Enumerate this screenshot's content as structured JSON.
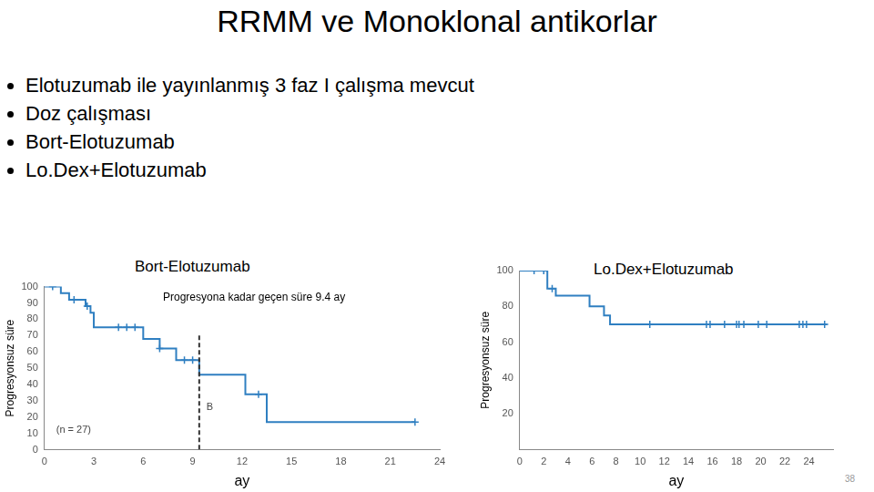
{
  "title": "RRMM ve Monoklonal antikorlar",
  "bullets": [
    "Elotuzumab ile yayınlanmış 3 faz I çalışma mevcut",
    "Doz çalışması",
    "Bort-Elotuzumab",
    "Lo.Dex+Elotuzumab"
  ],
  "page_number": 38,
  "chart_data": [
    {
      "type": "line",
      "title": "Bort-Elotuzumab",
      "x_label": "ay",
      "y_label": "Progresyonsuz süre",
      "xlim": [
        0,
        24
      ],
      "xticks": [
        0,
        3,
        6,
        9,
        12,
        15,
        18,
        21,
        24
      ],
      "ylim": [
        0,
        100
      ],
      "yticks": [
        0,
        10,
        20,
        30,
        40,
        50,
        60,
        70,
        80,
        90,
        100
      ],
      "grid": false,
      "median": 9.4,
      "annotations": [
        "Progresyona kadar geçen süre 9.4 ay",
        "(n = 27)",
        "B"
      ],
      "series": [
        {
          "color": "#2f7fc1",
          "line_style": "stepped",
          "x": [
            0,
            1,
            1.5,
            2.5,
            2.8,
            3,
            6,
            7,
            8,
            9.4,
            12.2,
            13.5,
            22.5
          ],
          "values": [
            100,
            96,
            92,
            88,
            84,
            75,
            68,
            62,
            55,
            46,
            34,
            17,
            17
          ]
        },
        {
          "type": "scatter",
          "marker": "cross",
          "color": "#2f7fc1",
          "x": [
            0.5,
            1.8,
            2.6,
            4.5,
            5,
            5.5,
            7,
            8.5,
            9,
            13,
            22.5
          ],
          "values": [
            100,
            92,
            88,
            75,
            75,
            75,
            62,
            55,
            55,
            34,
            17
          ]
        }
      ]
    },
    {
      "type": "line",
      "title": "Lo.Dex+Elotuzumab",
      "x_label": "ay",
      "y_label": "Progresyonsuz süre",
      "xlim": [
        0,
        26
      ],
      "xticks": [
        0,
        2,
        4,
        6,
        8,
        10,
        12,
        14,
        16,
        18,
        20,
        22,
        24
      ],
      "ylim": [
        0,
        100
      ],
      "yticks": [
        20,
        40,
        60,
        80,
        100
      ],
      "grid": false,
      "series": [
        {
          "color": "#2f7fc1",
          "line_style": "stepped",
          "x": [
            0,
            2.3,
            3,
            5.8,
            7,
            7.5,
            25.5
          ],
          "values": [
            100,
            90,
            86,
            80,
            75,
            70,
            70
          ]
        },
        {
          "type": "scatter",
          "marker": "cross",
          "color": "#2f7fc1",
          "x": [
            1.2,
            2,
            2.7,
            10.8,
            15.5,
            15.8,
            17,
            18,
            18.2,
            18.6,
            19.8,
            20.5,
            23.2,
            23.5,
            23.8,
            25.3
          ],
          "values": [
            100,
            100,
            90,
            70,
            70,
            70,
            70,
            70,
            70,
            70,
            70,
            70,
            70,
            70,
            70,
            70
          ]
        }
      ]
    }
  ]
}
